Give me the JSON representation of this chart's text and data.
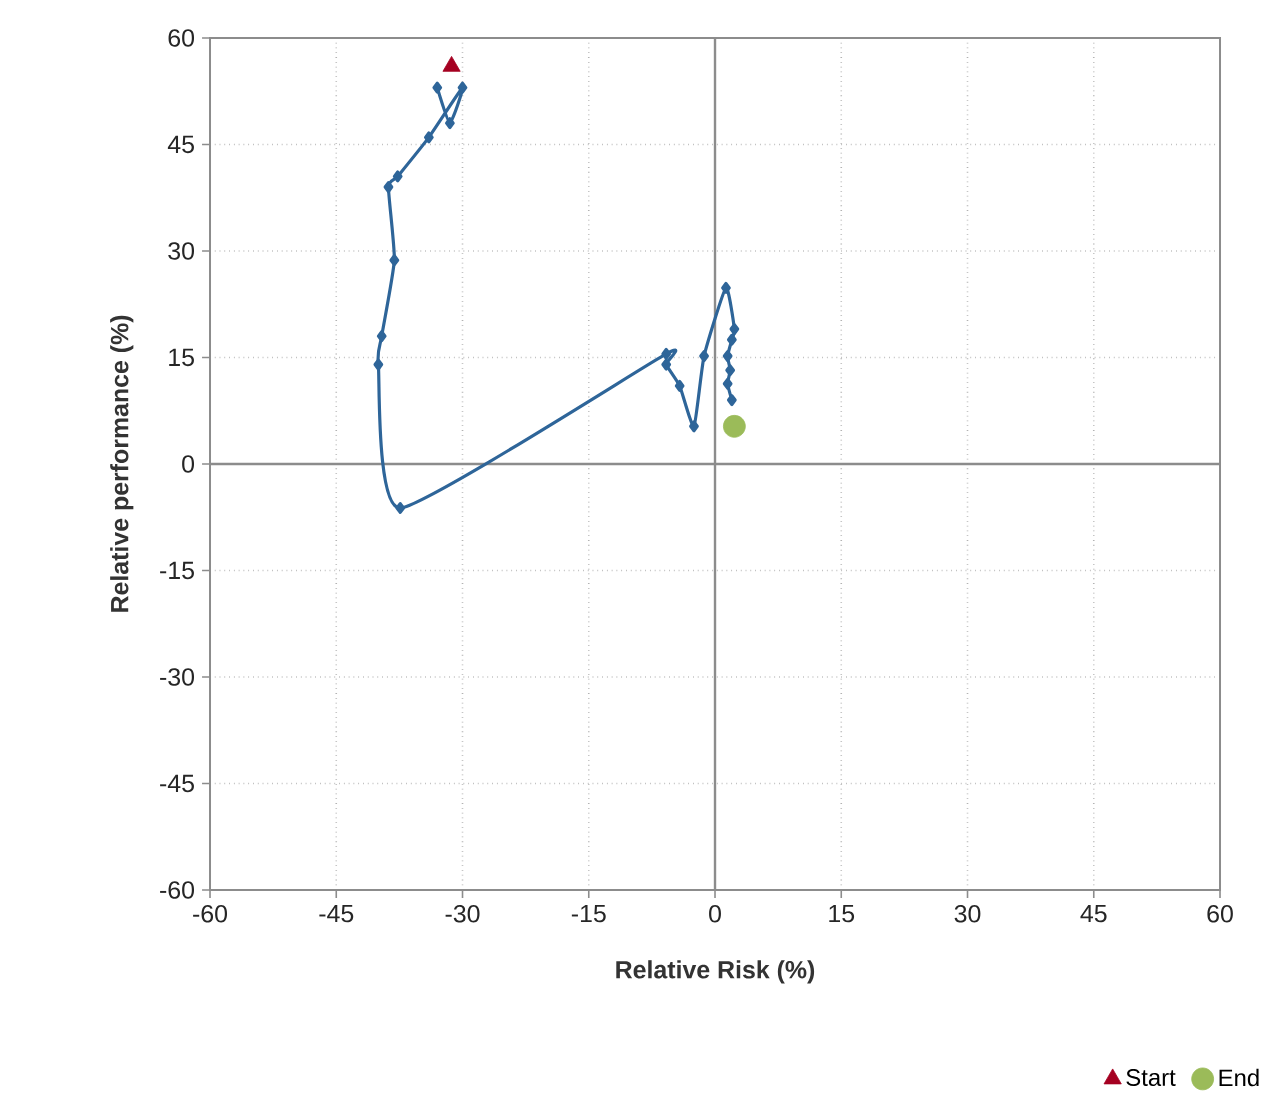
{
  "chart_data": {
    "type": "line",
    "xlabel": "Relative Risk (%)",
    "ylabel": "Relative performance (%)",
    "xlim": [
      -60,
      60
    ],
    "ylim": [
      -60,
      60
    ],
    "xticks": [
      -60,
      -45,
      -30,
      -15,
      0,
      15,
      30,
      45,
      60
    ],
    "yticks": [
      -60,
      -45,
      -30,
      -15,
      0,
      15,
      30,
      45,
      60
    ],
    "grid": true,
    "legend": "bottom right",
    "series": [
      {
        "color": "#2e6599",
        "marker": "diamond",
        "x": [
          -33,
          -31.5,
          -30,
          -34,
          -37.7,
          -38.8,
          -38.1,
          -39.6,
          -40,
          -37.4,
          -5.8,
          -5.8,
          -4.2,
          -2.5,
          -1.3,
          1.3,
          2.3,
          2,
          1.5,
          1.8,
          1.5,
          2
        ],
        "values": [
          53,
          48,
          53,
          46,
          40.5,
          39,
          28.7,
          18,
          14,
          -6.2,
          15.5,
          14,
          11,
          5.3,
          15.2,
          24.8,
          19,
          17.5,
          15.2,
          13.2,
          11.3,
          9
        ]
      },
      {
        "type": "scatter",
        "name": "Start",
        "color": "#a50021",
        "marker": "triangle",
        "x": [
          -31.3
        ],
        "values": [
          56
        ]
      },
      {
        "type": "scatter",
        "name": "End",
        "color": "#9bbb59",
        "marker": "circle",
        "x": [
          2.3
        ],
        "values": [
          5.3
        ]
      }
    ]
  }
}
